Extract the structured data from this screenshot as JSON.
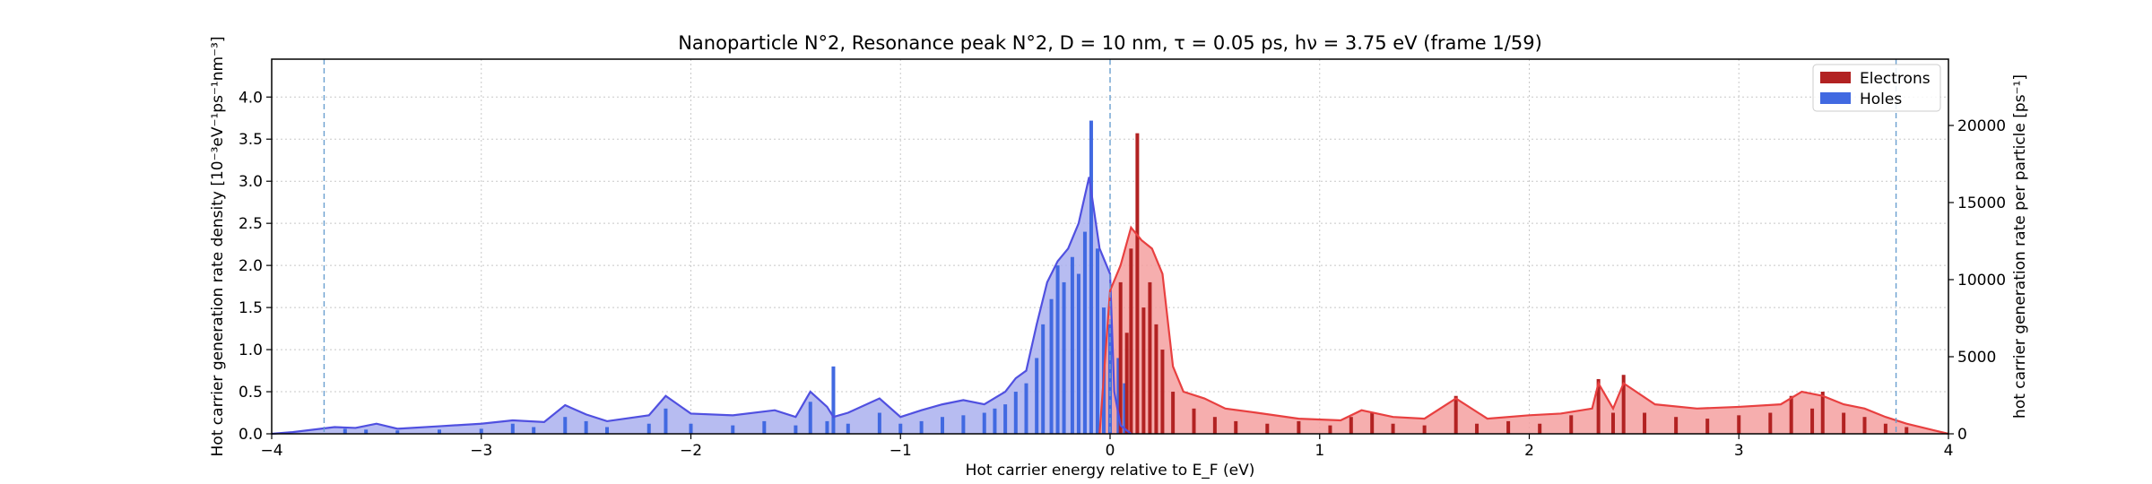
{
  "chart_data": {
    "type": "bar",
    "title": "Nanoparticle N°2, Resonance peak N°2, D = 10 nm, τ = 0.05 ps, hν = 3.75 eV   (frame 1/59)",
    "xlabel": "Hot carrier energy relative to E_F (eV)",
    "ylabel_left": "Hot carrier generation rate density [10⁻³eV⁻¹ps⁻¹nm⁻³]",
    "ylabel_right": "hot carrier generation rate per particle [ps⁻¹]",
    "xlim": [
      -4,
      4
    ],
    "ylim_left": [
      0,
      4.45
    ],
    "ylim_right": [
      0,
      24300
    ],
    "x_ticks": [
      -4,
      -3,
      -2,
      -1,
      0,
      1,
      2,
      3,
      4
    ],
    "x_tick_labels": [
      "−4",
      "−3",
      "−2",
      "−1",
      "0",
      "1",
      "2",
      "3",
      "4"
    ],
    "y_left_ticks": [
      0,
      0.5,
      1.0,
      1.5,
      2.0,
      2.5,
      3.0,
      3.5,
      4.0
    ],
    "y_left_tick_labels": [
      "0.0",
      "0.5",
      "1.0",
      "1.5",
      "2.0",
      "2.5",
      "3.0",
      "3.5",
      "4.0"
    ],
    "y_right_ticks": [
      0,
      5000,
      10000,
      15000,
      20000
    ],
    "y_right_tick_labels": [
      "0",
      "5000",
      "10000",
      "15000",
      "20000"
    ],
    "vlines": [
      -3.75,
      0,
      3.75
    ],
    "grid": true,
    "legend_position": "top-right",
    "legend": [
      {
        "name": "Electrons",
        "color": "#b22222"
      },
      {
        "name": "Holes",
        "color": "#4169e1"
      }
    ],
    "series": [
      {
        "name": "Holes",
        "color": "#4169e1",
        "fill_color": "#aab0ee",
        "line_color": "#5050e0",
        "curve": [
          [
            -4,
            0
          ],
          [
            -3.9,
            0.02
          ],
          [
            -3.7,
            0.08
          ],
          [
            -3.6,
            0.07
          ],
          [
            -3.5,
            0.12
          ],
          [
            -3.4,
            0.06
          ],
          [
            -3.2,
            0.09
          ],
          [
            -3.0,
            0.12
          ],
          [
            -2.85,
            0.16
          ],
          [
            -2.7,
            0.14
          ],
          [
            -2.6,
            0.34
          ],
          [
            -2.5,
            0.23
          ],
          [
            -2.4,
            0.15
          ],
          [
            -2.2,
            0.22
          ],
          [
            -2.12,
            0.45
          ],
          [
            -2.0,
            0.24
          ],
          [
            -1.8,
            0.22
          ],
          [
            -1.6,
            0.28
          ],
          [
            -1.5,
            0.2
          ],
          [
            -1.43,
            0.5
          ],
          [
            -1.35,
            0.32
          ],
          [
            -1.32,
            0.2
          ],
          [
            -1.25,
            0.25
          ],
          [
            -1.1,
            0.42
          ],
          [
            -1.0,
            0.2
          ],
          [
            -0.9,
            0.28
          ],
          [
            -0.8,
            0.35
          ],
          [
            -0.7,
            0.4
          ],
          [
            -0.6,
            0.35
          ],
          [
            -0.5,
            0.5
          ],
          [
            -0.45,
            0.66
          ],
          [
            -0.4,
            0.75
          ],
          [
            -0.35,
            1.3
          ],
          [
            -0.3,
            1.8
          ],
          [
            -0.25,
            2.05
          ],
          [
            -0.2,
            2.2
          ],
          [
            -0.15,
            2.5
          ],
          [
            -0.1,
            3.05
          ],
          [
            -0.05,
            2.2
          ],
          [
            0,
            1.9
          ],
          [
            0.02,
            0.5
          ],
          [
            0.05,
            0.1
          ],
          [
            0.1,
            0
          ]
        ],
        "bars": [
          [
            -3.65,
            0.06
          ],
          [
            -3.55,
            0.05
          ],
          [
            -3.4,
            0.04
          ],
          [
            -3.2,
            0.05
          ],
          [
            -3.0,
            0.06
          ],
          [
            -2.85,
            0.12
          ],
          [
            -2.75,
            0.08
          ],
          [
            -2.6,
            0.2
          ],
          [
            -2.5,
            0.15
          ],
          [
            -2.4,
            0.08
          ],
          [
            -2.2,
            0.12
          ],
          [
            -2.12,
            0.3
          ],
          [
            -2.0,
            0.12
          ],
          [
            -1.8,
            0.1
          ],
          [
            -1.65,
            0.15
          ],
          [
            -1.5,
            0.1
          ],
          [
            -1.43,
            0.38
          ],
          [
            -1.35,
            0.15
          ],
          [
            -1.32,
            0.8
          ],
          [
            -1.25,
            0.12
          ],
          [
            -1.1,
            0.25
          ],
          [
            -1.0,
            0.12
          ],
          [
            -0.9,
            0.15
          ],
          [
            -0.8,
            0.2
          ],
          [
            -0.7,
            0.22
          ],
          [
            -0.6,
            0.25
          ],
          [
            -0.55,
            0.3
          ],
          [
            -0.5,
            0.35
          ],
          [
            -0.45,
            0.5
          ],
          [
            -0.4,
            0.6
          ],
          [
            -0.35,
            0.9
          ],
          [
            -0.32,
            1.3
          ],
          [
            -0.28,
            1.6
          ],
          [
            -0.25,
            2.0
          ],
          [
            -0.22,
            1.8
          ],
          [
            -0.18,
            2.1
          ],
          [
            -0.15,
            1.9
          ],
          [
            -0.12,
            2.4
          ],
          [
            -0.09,
            3.72
          ],
          [
            -0.06,
            2.2
          ],
          [
            -0.03,
            1.5
          ],
          [
            0.0,
            1.3
          ],
          [
            0.04,
            0.9
          ],
          [
            0.07,
            0.6
          ]
        ]
      },
      {
        "name": "Electrons",
        "color": "#b22222",
        "fill_color": "#f5a0a0",
        "line_color": "#e84040",
        "curve": [
          [
            -0.05,
            0
          ],
          [
            0,
            1.7
          ],
          [
            0.05,
            2.0
          ],
          [
            0.1,
            2.45
          ],
          [
            0.15,
            2.3
          ],
          [
            0.2,
            2.2
          ],
          [
            0.25,
            1.9
          ],
          [
            0.3,
            0.8
          ],
          [
            0.35,
            0.5
          ],
          [
            0.45,
            0.42
          ],
          [
            0.55,
            0.3
          ],
          [
            0.7,
            0.25
          ],
          [
            0.9,
            0.18
          ],
          [
            1.1,
            0.16
          ],
          [
            1.2,
            0.28
          ],
          [
            1.35,
            0.2
          ],
          [
            1.5,
            0.18
          ],
          [
            1.65,
            0.42
          ],
          [
            1.8,
            0.18
          ],
          [
            2.0,
            0.22
          ],
          [
            2.15,
            0.24
          ],
          [
            2.3,
            0.3
          ],
          [
            2.33,
            0.6
          ],
          [
            2.4,
            0.3
          ],
          [
            2.45,
            0.6
          ],
          [
            2.6,
            0.35
          ],
          [
            2.8,
            0.3
          ],
          [
            3.0,
            0.32
          ],
          [
            3.2,
            0.35
          ],
          [
            3.3,
            0.5
          ],
          [
            3.4,
            0.45
          ],
          [
            3.5,
            0.35
          ],
          [
            3.6,
            0.3
          ],
          [
            3.7,
            0.2
          ],
          [
            3.8,
            0.12
          ],
          [
            4.0,
            0
          ]
        ],
        "bars": [
          [
            0.05,
            1.8
          ],
          [
            0.08,
            1.2
          ],
          [
            0.1,
            2.2
          ],
          [
            0.13,
            3.57
          ],
          [
            0.16,
            1.5
          ],
          [
            0.19,
            1.8
          ],
          [
            0.22,
            1.3
          ],
          [
            0.25,
            1.0
          ],
          [
            0.3,
            0.5
          ],
          [
            0.4,
            0.3
          ],
          [
            0.5,
            0.2
          ],
          [
            0.6,
            0.15
          ],
          [
            0.75,
            0.12
          ],
          [
            0.9,
            0.15
          ],
          [
            1.05,
            0.1
          ],
          [
            1.15,
            0.2
          ],
          [
            1.25,
            0.25
          ],
          [
            1.35,
            0.12
          ],
          [
            1.5,
            0.1
          ],
          [
            1.65,
            0.45
          ],
          [
            1.75,
            0.12
          ],
          [
            1.9,
            0.15
          ],
          [
            2.05,
            0.12
          ],
          [
            2.2,
            0.22
          ],
          [
            2.33,
            0.65
          ],
          [
            2.4,
            0.25
          ],
          [
            2.45,
            0.7
          ],
          [
            2.55,
            0.25
          ],
          [
            2.7,
            0.2
          ],
          [
            2.85,
            0.18
          ],
          [
            3.0,
            0.22
          ],
          [
            3.15,
            0.25
          ],
          [
            3.25,
            0.45
          ],
          [
            3.35,
            0.3
          ],
          [
            3.4,
            0.5
          ],
          [
            3.5,
            0.25
          ],
          [
            3.6,
            0.2
          ],
          [
            3.7,
            0.12
          ],
          [
            3.8,
            0.08
          ]
        ]
      }
    ]
  }
}
